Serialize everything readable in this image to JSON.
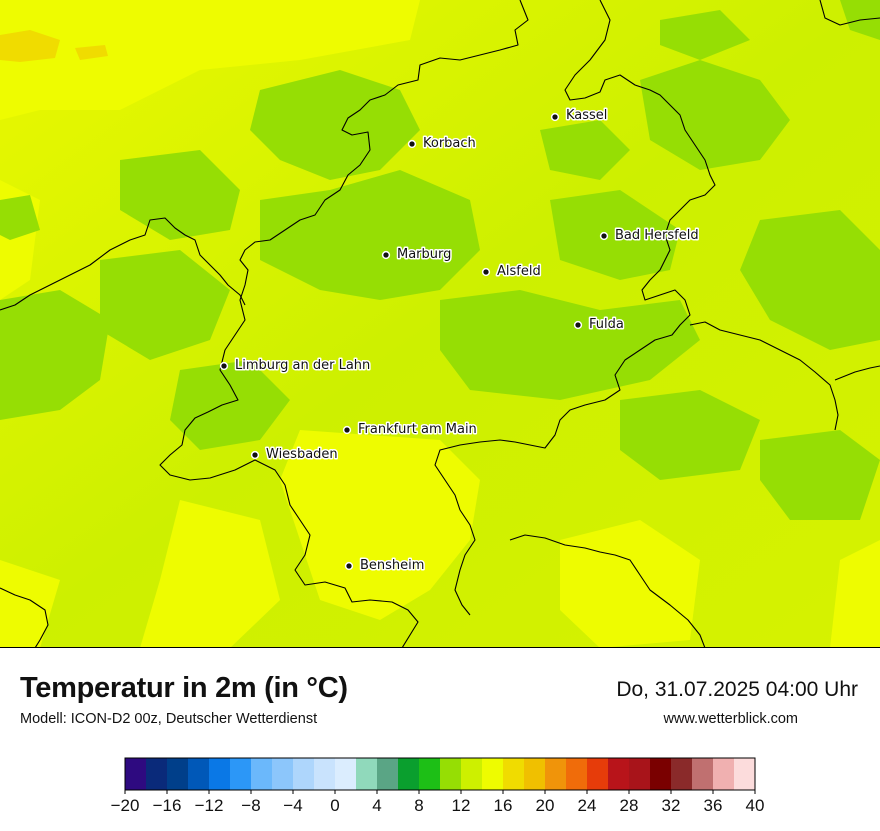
{
  "map": {
    "cities": [
      {
        "name": "Kassel"
      },
      {
        "name": "Korbach"
      },
      {
        "name": "Bad Hersfeld"
      },
      {
        "name": "Marburg"
      },
      {
        "name": "Alsfeld"
      },
      {
        "name": "Fulda"
      },
      {
        "name": "Limburg an der Lahn"
      },
      {
        "name": "Frankfurt am Main"
      },
      {
        "name": "Wiesbaden"
      },
      {
        "name": "Bensheim"
      }
    ]
  },
  "header": {
    "title": "Temperatur in 2m (in °C)",
    "subtitle": "Modell: ICON-D2 00z, Deutscher Wetterdienst",
    "datetime": "Do, 31.07.2025 04:00 Uhr",
    "website": "www.wetterblick.com"
  },
  "legend": {
    "ticks": [
      "−20",
      "−16",
      "−12",
      "−8",
      "−4",
      "0",
      "4",
      "8",
      "12",
      "16",
      "20",
      "24",
      "28",
      "32",
      "36",
      "40"
    ],
    "colors": [
      "#2e0a80",
      "#0a2a7a",
      "#003f8a",
      "#0058b8",
      "#0a78e6",
      "#2c97f7",
      "#6bb8fb",
      "#8cc6fb",
      "#aed6fc",
      "#c9e3fd",
      "#dbedfe",
      "#90d9bb",
      "#5aa585",
      "#0a9f2e",
      "#1dbf16",
      "#96de04",
      "#cdf000",
      "#eefc00",
      "#f0dc00",
      "#f0c000",
      "#f0940a",
      "#f06c0a",
      "#e63c0a",
      "#b8141a",
      "#a8141a",
      "#7a0000",
      "#8a2a2a",
      "#c07070",
      "#f0b0b0",
      "#fcdcdc"
    ]
  }
}
